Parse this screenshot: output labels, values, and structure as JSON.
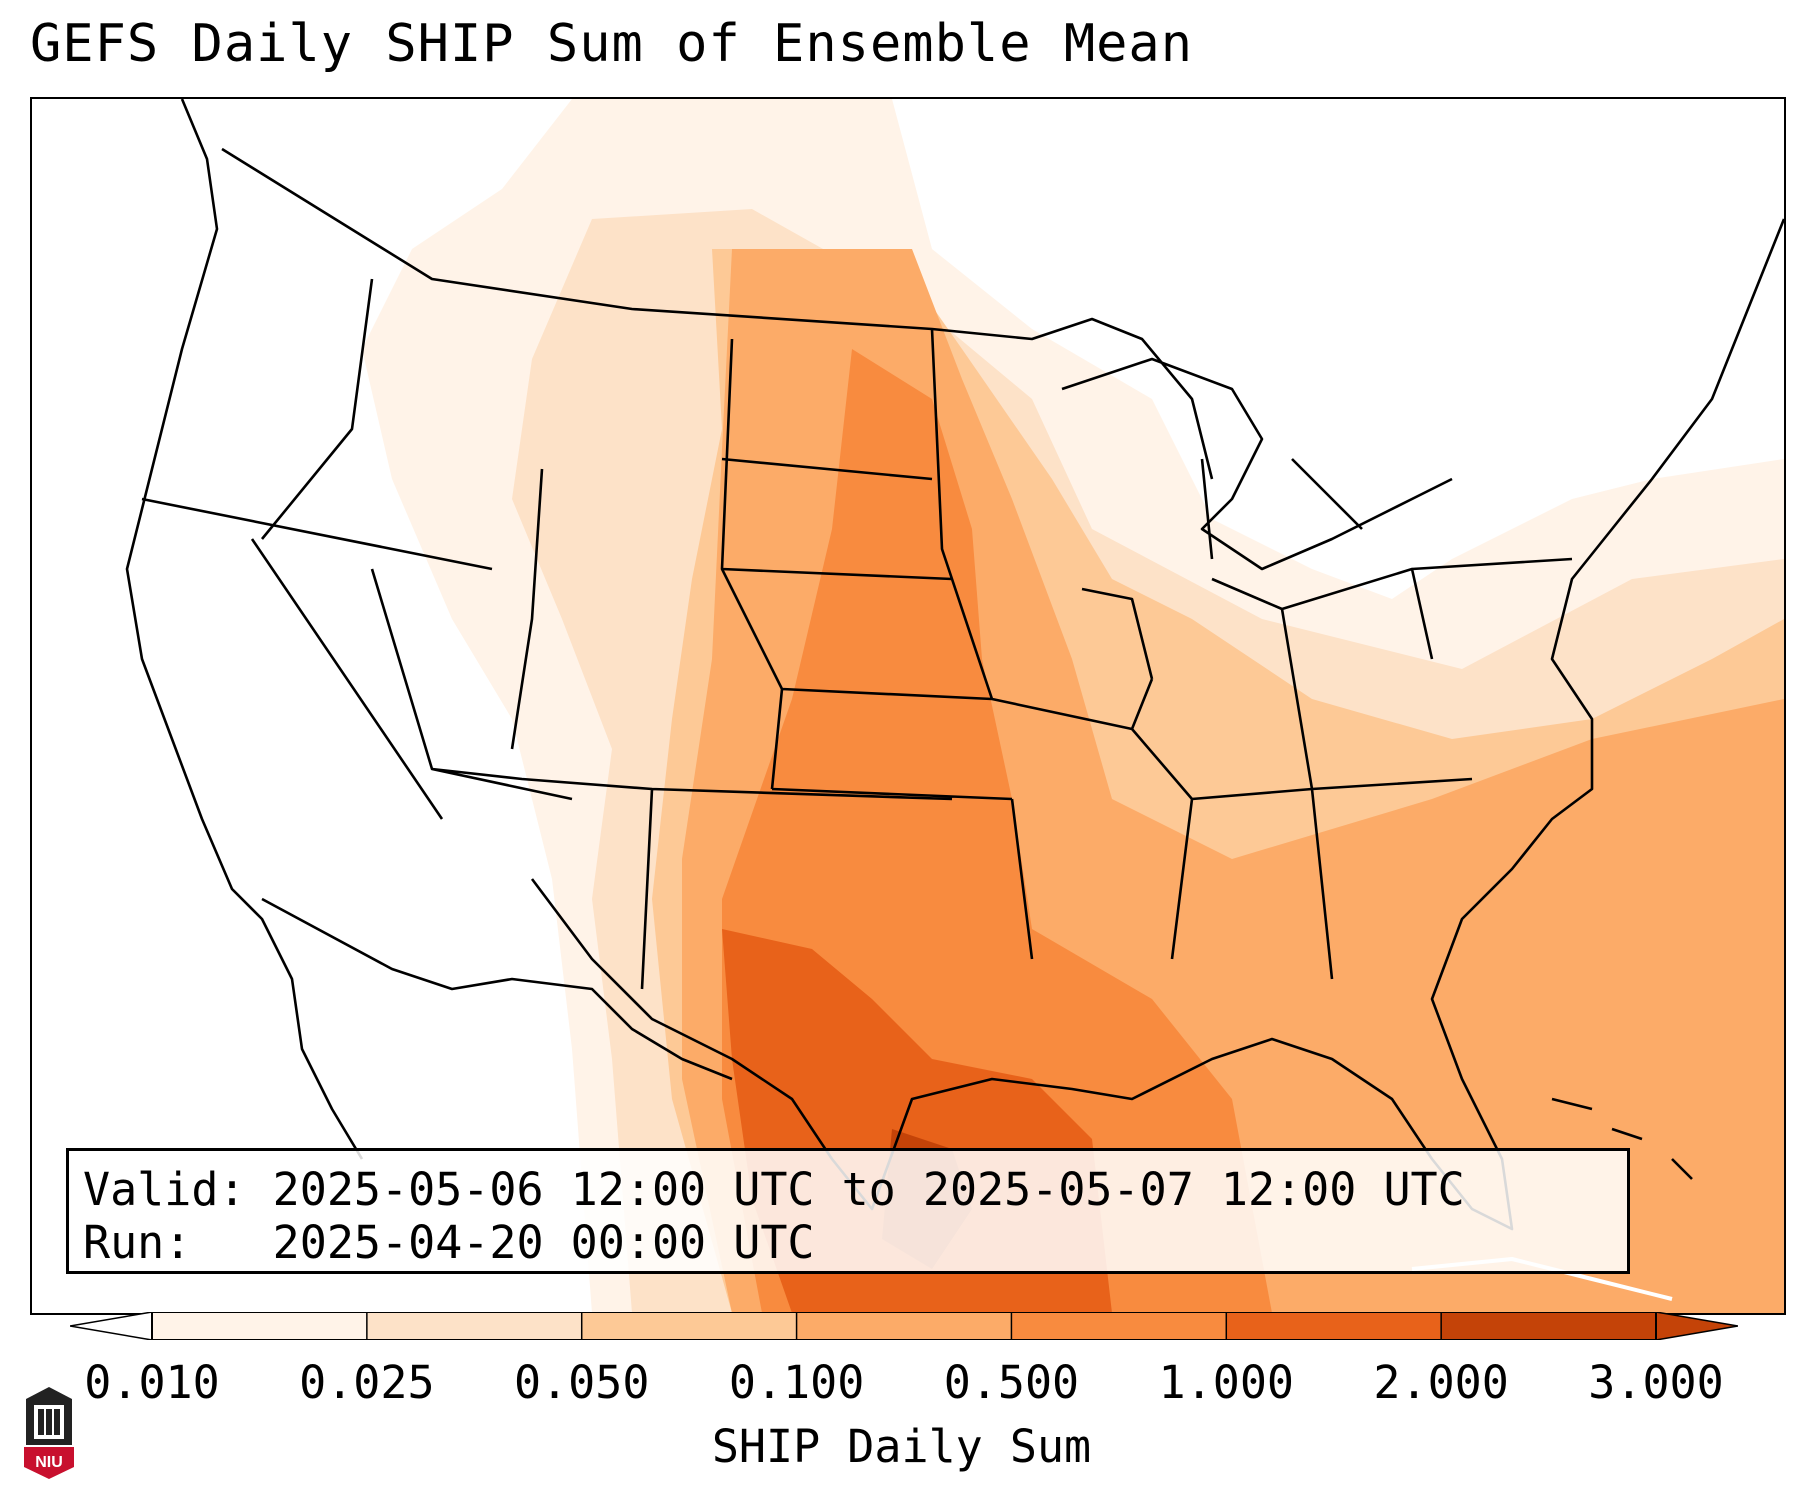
{
  "title": "GEFS Daily SHIP Sum of Ensemble Mean",
  "info": {
    "valid_label": "Valid:",
    "valid_text": "2025-05-06 12:00 UTC to 2025-05-07 12:00 UTC",
    "run_label": "Run:",
    "run_text": "2025-04-20 00:00 UTC"
  },
  "colorbar": {
    "label": "SHIP Daily Sum",
    "ticks": [
      "0.010",
      "0.025",
      "0.050",
      "0.100",
      "0.500",
      "1.000",
      "2.000",
      "3.000"
    ],
    "colors": [
      "#fff3e8",
      "#fde2c8",
      "#fdc996",
      "#fcab68",
      "#f88b3f",
      "#e8621a",
      "#c44308"
    ],
    "extend": "both"
  },
  "legend_colors": {
    "lowest": "#fff3e8",
    "low": "#fde2c8",
    "mid_low": "#fdc996",
    "mid": "#fcab68",
    "mid_high": "#f88b3f",
    "high": "#e8621a",
    "highest": "#c44308"
  },
  "logo": {
    "text": "NIU",
    "color": "#c8102e"
  }
}
